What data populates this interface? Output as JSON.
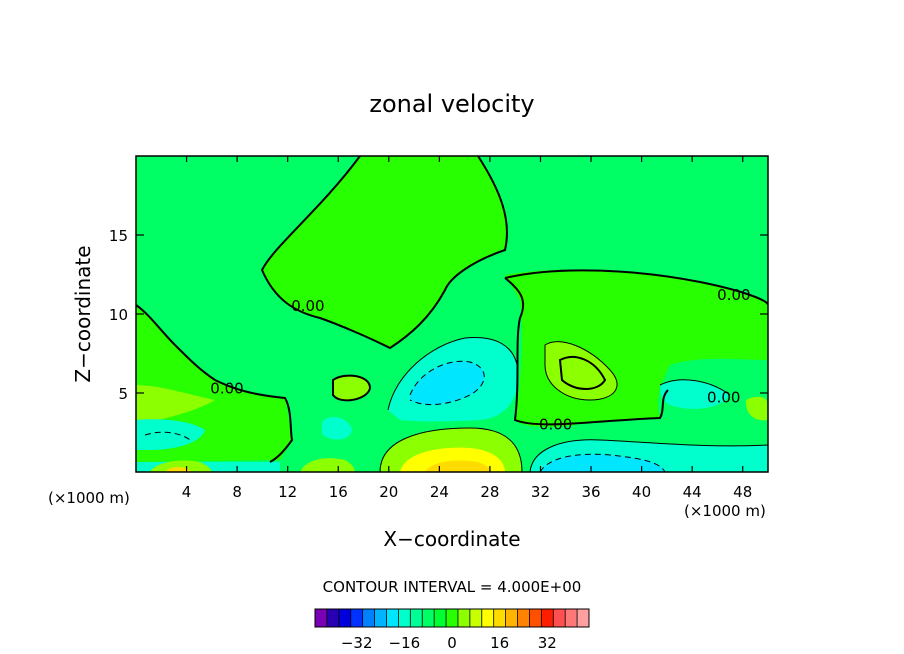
{
  "chart_data": {
    "type": "contour",
    "title": "zonal velocity",
    "xlabel": "X−coordinate",
    "ylabel": "Z−coordinate",
    "x_unit_left": "(×1000 m)",
    "x_unit_right": "(×1000 m)",
    "xlim": [
      0,
      50
    ],
    "ylim": [
      0,
      20
    ],
    "x_ticks": [
      4,
      8,
      12,
      16,
      20,
      24,
      28,
      32,
      36,
      40,
      44,
      48
    ],
    "x_tick_labels": [
      "4",
      "8",
      "12",
      "16",
      "20",
      "24",
      "28",
      "32",
      "36",
      "40",
      "44",
      "48"
    ],
    "y_ticks": [
      5,
      10,
      15
    ],
    "y_tick_labels": [
      "5",
      "10",
      "15"
    ],
    "contour_interval_text": "CONTOUR INTERVAL = 4.000E+00",
    "contour_labels": [
      {
        "text": "0.00",
        "x": 13.6,
        "y": 10.5
      },
      {
        "text": "0.00",
        "x": 7.2,
        "y": 5.3
      },
      {
        "text": "0.00",
        "x": 33.2,
        "y": 3.0
      },
      {
        "text": "0.00",
        "x": 47.3,
        "y": 11.2
      },
      {
        "text": "0.00",
        "x": 46.5,
        "y": 4.7
      }
    ],
    "colorbar": {
      "levels": [
        -44,
        -40,
        -36,
        -32,
        -28,
        -24,
        -20,
        -16,
        -12,
        -8,
        -4,
        0,
        4,
        8,
        12,
        16,
        20,
        24,
        28,
        32,
        36,
        40,
        44
      ],
      "tick_values": [
        -32,
        -16,
        0,
        16,
        32
      ],
      "tick_labels": [
        "−32",
        "−16",
        "0",
        "16",
        "32"
      ],
      "colors": [
        "#7a00b4",
        "#2800b4",
        "#0000dc",
        "#0032ff",
        "#0082ff",
        "#00b4ff",
        "#00e6ff",
        "#00ffcc",
        "#00ff96",
        "#00ff64",
        "#00ff32",
        "#28ff00",
        "#8cff00",
        "#c8ff00",
        "#ffff00",
        "#ffdc00",
        "#ffb400",
        "#ff8200",
        "#ff5000",
        "#ff1e00",
        "#ff5050",
        "#ff7878",
        "#ffa0a0"
      ]
    },
    "grid": false
  }
}
